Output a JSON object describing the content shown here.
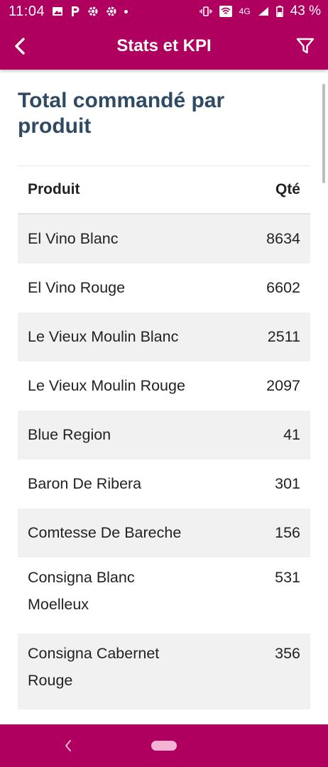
{
  "status_bar": {
    "time": "11:04",
    "network": "4G",
    "battery": "43 %",
    "icons": [
      "image-icon",
      "p-icon",
      "gear-icon",
      "gear-icon",
      "dot-icon",
      "vibrate-icon",
      "wifi-icon",
      "signal-icon",
      "battery-icon"
    ]
  },
  "app_bar": {
    "title": "Stats et KPI",
    "back_icon": "chevron-left-icon",
    "filter_icon": "filter-icon"
  },
  "section": {
    "title": "Total commandé par produit"
  },
  "table": {
    "headers": {
      "product": "Produit",
      "qty": "Qté"
    },
    "rows": [
      {
        "product": "El Vino Blanc",
        "qty": "8634"
      },
      {
        "product": "El Vino Rouge",
        "qty": "6602"
      },
      {
        "product": "Le Vieux Moulin Blanc",
        "qty": "2511"
      },
      {
        "product": "Le Vieux Moulin Rouge",
        "qty": "2097"
      },
      {
        "product": "Blue Region",
        "qty": "41"
      },
      {
        "product": "Baron De Ribera",
        "qty": "301"
      },
      {
        "product": "Comtesse De Bareche",
        "qty": "156"
      },
      {
        "product": "Consigna Blanc Moelleux",
        "qty": "531"
      },
      {
        "product": "Consigna Cabernet Rouge",
        "qty": "356"
      }
    ]
  },
  "colors": {
    "brand": "#b0005f",
    "title": "#2f4a63",
    "row_shade": "#f1f1f1",
    "home_pill": "#f2b3d4"
  }
}
